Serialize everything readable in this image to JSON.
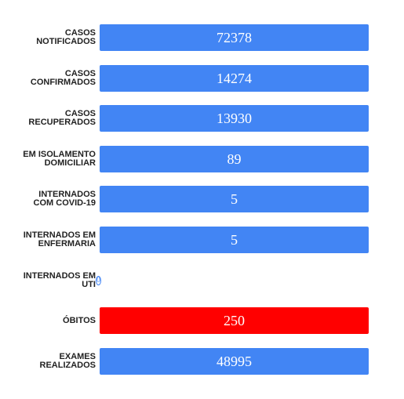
{
  "chart_data": {
    "type": "bar",
    "orientation": "horizontal",
    "categories": [
      "CASOS NOTIFICADOS",
      "CASOS CONFIRMADOS",
      "CASOS RECUPERADOS",
      "EM ISOLAMENTO DOMICILIAR",
      "INTERNADOS COM COVID-19",
      "INTERNADOS EM ENFERMARIA",
      "INTERNADOS EM UTI",
      "ÓBITOS",
      "EXAMES REALIZADOS"
    ],
    "label_lines": [
      [
        "CASOS",
        "NOTIFICADOS"
      ],
      [
        "CASOS",
        "CONFIRMADOS"
      ],
      [
        "CASOS",
        "RECUPERADOS"
      ],
      [
        "EM ISOLAMENTO",
        "DOMICILIAR"
      ],
      [
        "INTERNADOS",
        "COM COVID-19"
      ],
      [
        "INTERNADOS EM",
        "ENFERMARIA"
      ],
      [
        "INTERNADOS EM",
        "UTI"
      ],
      [
        "ÓBITOS"
      ],
      [
        "EXAMES",
        "REALIZADOS"
      ]
    ],
    "values": [
      72378,
      14274,
      13930,
      89,
      5,
      5,
      0,
      250,
      48995
    ],
    "value_labels": [
      "72378",
      "14274",
      "13930",
      "89",
      "5",
      "5",
      "0",
      "250",
      "48995"
    ],
    "bar_colors": [
      "#4285f4",
      "#4285f4",
      "#4285f4",
      "#4285f4",
      "#4285f4",
      "#4285f4",
      "#4285f4",
      "#ff0000",
      "#4285f4"
    ],
    "bars_equal_length": true,
    "title": "",
    "xlabel": "",
    "ylabel": "",
    "grid": false,
    "legend": "none"
  }
}
